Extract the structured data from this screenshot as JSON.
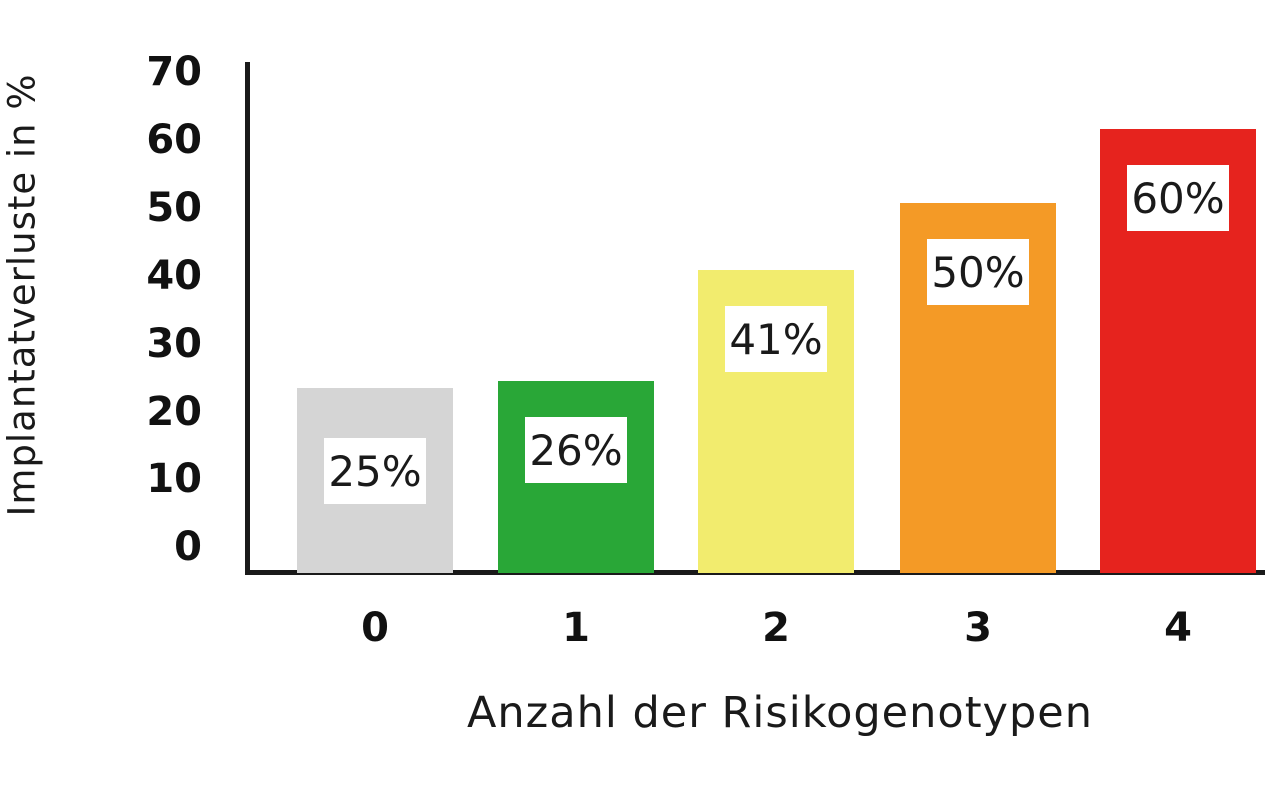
{
  "chart_data": {
    "type": "bar",
    "title": "",
    "xlabel": "Anzahl der Risikogenotypen",
    "ylabel": "Implantatverluste in %",
    "categories": [
      "0",
      "1",
      "2",
      "3",
      "4"
    ],
    "values": [
      25,
      26,
      41,
      50,
      60
    ],
    "bar_labels": [
      "25%",
      "26%",
      "41%",
      "50%",
      "60%"
    ],
    "bar_colors": [
      "#d5d5d5",
      "#29a737",
      "#f2ec6e",
      "#f49a26",
      "#e6231e"
    ],
    "y_ticks": [
      "70",
      "60",
      "50",
      "40",
      "30",
      "20",
      "10",
      "0"
    ],
    "ylim": [
      0,
      70
    ],
    "grid": false,
    "legend": "none",
    "axis_color": "#1a1a1a"
  }
}
